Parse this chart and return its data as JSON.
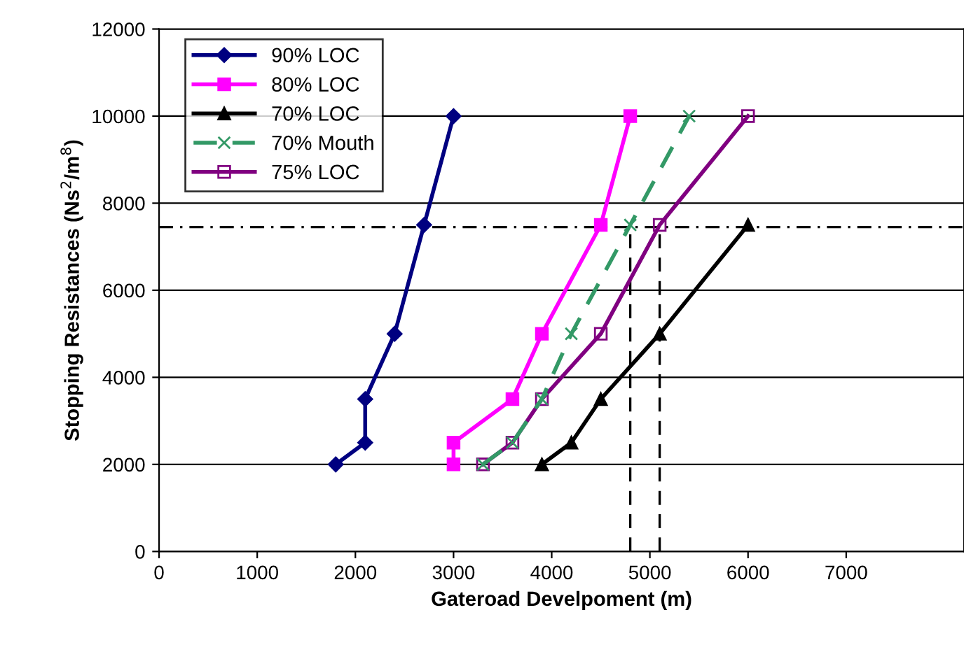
{
  "chart_data": {
    "type": "line",
    "xlabel": "Gateroad Develpoment (m)",
    "ylabel": "Stopping Resistances (Ns$^{2}$/m$^{8}$)",
    "xlim": [
      0,
      8200
    ],
    "xticks": [
      0,
      1000,
      2000,
      3000,
      4000,
      5000,
      6000,
      7000
    ],
    "ylim": [
      0,
      12000
    ],
    "yticks": [
      0,
      2000,
      4000,
      6000,
      8000,
      10000,
      12000
    ],
    "grid": "y",
    "legend": "top left",
    "series": [
      {
        "name": "90% LOC",
        "color": "#000080",
        "marker": "diamond",
        "line_style": "solid",
        "x": [
          1800,
          2100,
          2100,
          2400,
          2700,
          3000
        ],
        "values": [
          2000,
          2500,
          3500,
          5000,
          7500,
          10000
        ]
      },
      {
        "name": "80% LOC",
        "color": "#ff00ff",
        "marker": "square",
        "line_style": "solid",
        "x": [
          3000,
          3000,
          3600,
          3900,
          4500,
          4800
        ],
        "values": [
          2000,
          2500,
          3500,
          5000,
          7500,
          10000
        ]
      },
      {
        "name": "70% LOC",
        "color": "#000000",
        "marker": "triangle",
        "line_style": "solid",
        "x": [
          3900,
          4200,
          4500,
          5100,
          6000
        ],
        "values": [
          2000,
          2500,
          3500,
          5000,
          7500
        ]
      },
      {
        "name": "70% Mouth",
        "color": "#339966",
        "marker": "cross",
        "line_style": "dashed",
        "x": [
          3300,
          3600,
          3900,
          4200,
          4800,
          5400
        ],
        "values": [
          2000,
          2500,
          3500,
          5000,
          7500,
          10000
        ]
      },
      {
        "name": "75% LOC",
        "color": "#800080",
        "marker": "square",
        "line_style": "solid",
        "x": [
          3300,
          3600,
          3900,
          4500,
          5100,
          6000
        ],
        "values": [
          2000,
          2500,
          3500,
          5000,
          7500,
          10000
        ]
      }
    ],
    "ref_lines": [
      {
        "axis": "y",
        "value": 7450,
        "line_style": "dashdot",
        "color": "#000000"
      },
      {
        "axis": "x",
        "value": 4800,
        "line_style": "dashed",
        "color": "#000000"
      },
      {
        "axis": "x",
        "value": 5100,
        "line_style": "dashed",
        "color": "#000000"
      }
    ]
  }
}
